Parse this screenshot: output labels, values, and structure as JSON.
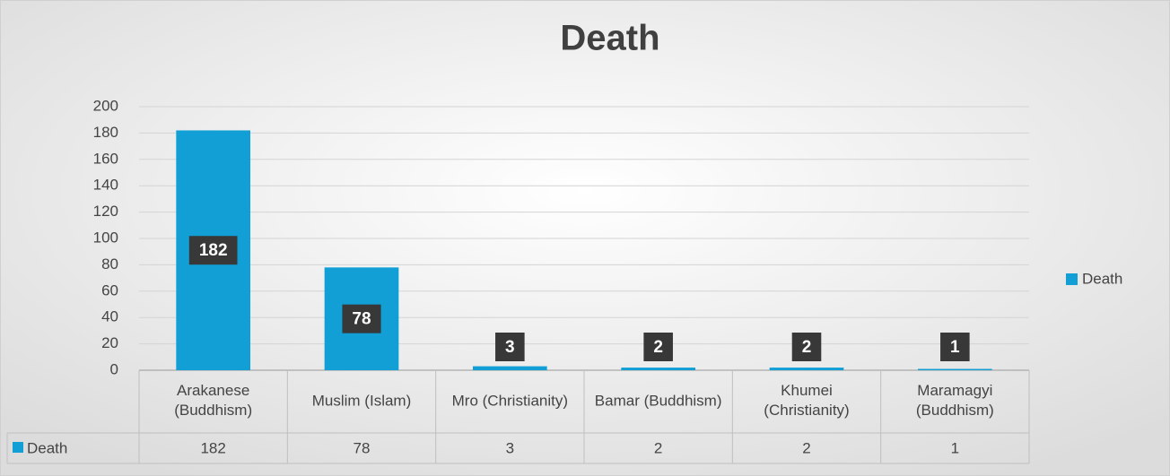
{
  "chart_data": {
    "type": "bar",
    "title": "Death",
    "categories": [
      "Arakanese (Buddhism)",
      "Muslim (Islam)",
      "Mro (Christianity)",
      "Bamar (Buddhism)",
      "Khumei (Christianity)",
      "Maramagyi (Buddhism)"
    ],
    "series": [
      {
        "name": "Death",
        "color": "#119fd6",
        "values": [
          182,
          78,
          3,
          2,
          2,
          1
        ]
      }
    ],
    "ylim": [
      0,
      200
    ],
    "yticks": [
      0,
      20,
      40,
      60,
      80,
      100,
      120,
      140,
      160,
      180,
      200
    ],
    "grid": true,
    "legend": "right",
    "data_table": true
  }
}
